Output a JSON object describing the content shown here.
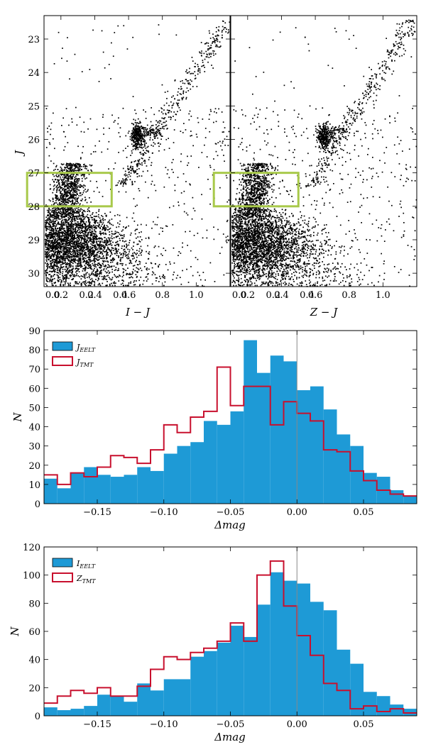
{
  "chart_data": [
    {
      "type": "scatter",
      "panel": "left",
      "xlabel": "I − J",
      "ylabel": "J",
      "xlim": [
        0.1,
        1.2
      ],
      "ylim": [
        30.4,
        22.3
      ],
      "xticks": [
        {
          "v": 0.2,
          "l": "0.2"
        },
        {
          "v": 0.4,
          "l": "0.4"
        },
        {
          "v": 0.6,
          "l": "0.6"
        },
        {
          "v": 0.8,
          "l": "0.8"
        },
        {
          "v": 1.0,
          "l": "1.0"
        }
      ],
      "xticks_lower": [
        {
          "v": 0.0,
          "l": "0.0"
        },
        {
          "v": 0.2,
          "l": "0.2"
        },
        {
          "v": 0.4,
          "l": "0.4"
        }
      ],
      "yticks": [
        {
          "v": 23,
          "l": "23"
        },
        {
          "v": 24,
          "l": "24"
        },
        {
          "v": 25,
          "l": "25"
        },
        {
          "v": 26,
          "l": "26"
        },
        {
          "v": 27,
          "l": "27"
        },
        {
          "v": 28,
          "l": "28"
        },
        {
          "v": 29,
          "l": "29"
        },
        {
          "v": 30,
          "l": "30"
        }
      ],
      "box": {
        "x0": 0.0,
        "x1": 0.5,
        "y0": 27.0,
        "y1": 28.0,
        "color": "#a8c94a"
      }
    },
    {
      "type": "scatter",
      "panel": "right",
      "xlabel": "Z − J",
      "xlim": [
        0.1,
        1.2
      ],
      "ylim": [
        30.4,
        22.3
      ],
      "xticks": [
        {
          "v": 0.2,
          "l": "0.2"
        },
        {
          "v": 0.4,
          "l": "0.4"
        },
        {
          "v": 0.6,
          "l": "0.6"
        },
        {
          "v": 0.8,
          "l": "0.8"
        },
        {
          "v": 1.0,
          "l": "1.0"
        }
      ],
      "xticks_lower": [
        {
          "v": 0.0,
          "l": "0.0"
        },
        {
          "v": 0.2,
          "l": "0.2"
        },
        {
          "v": 0.4,
          "l": "0.4"
        }
      ],
      "box": {
        "x0": 0.0,
        "x1": 0.5,
        "y0": 27.0,
        "y1": 28.0,
        "color": "#a8c94a"
      }
    },
    {
      "type": "bar",
      "panel": "hist-j",
      "xlabel": "Δmag",
      "ylabel": "N",
      "xlim": [
        -0.19,
        0.09
      ],
      "ylim": [
        0,
        90
      ],
      "bin_start": -0.19,
      "bin_width": 0.01,
      "filled": {
        "name": "J_EELT",
        "color": "#1e9ad6",
        "values": [
          13,
          8,
          16,
          19,
          15,
          14,
          15,
          19,
          17,
          26,
          30,
          32,
          43,
          41,
          48,
          85,
          68,
          77,
          74,
          59,
          61,
          49,
          36,
          30,
          16,
          14,
          7,
          4
        ]
      },
      "step": {
        "name": "J_TMT",
        "color": "#c8102e",
        "values": [
          15,
          10,
          16,
          14,
          19,
          25,
          24,
          21,
          28,
          41,
          37,
          45,
          48,
          71,
          51,
          61,
          61,
          41,
          53,
          47,
          43,
          28,
          27,
          17,
          12,
          7,
          5,
          4
        ]
      },
      "xticks": [
        {
          "v": -0.15,
          "l": "−0.15"
        },
        {
          "v": -0.1,
          "l": "−0.10"
        },
        {
          "v": -0.05,
          "l": "−0.05"
        },
        {
          "v": 0.0,
          "l": "0.00"
        },
        {
          "v": 0.05,
          "l": "0.05"
        }
      ],
      "yticks": [
        {
          "v": 0,
          "l": "0"
        },
        {
          "v": 10,
          "l": "10"
        },
        {
          "v": 20,
          "l": "20"
        },
        {
          "v": 30,
          "l": "30"
        },
        {
          "v": 40,
          "l": "40"
        },
        {
          "v": 50,
          "l": "50"
        },
        {
          "v": 60,
          "l": "60"
        },
        {
          "v": 70,
          "l": "70"
        },
        {
          "v": 80,
          "l": "80"
        },
        {
          "v": 90,
          "l": "90"
        }
      ],
      "vline": 0.0,
      "legend": [
        {
          "main": "J",
          "sub": "EELT"
        },
        {
          "main": "J",
          "sub": "TMT"
        }
      ]
    },
    {
      "type": "bar",
      "panel": "hist-iz",
      "xlabel": "Δmag",
      "ylabel": "N",
      "xlim": [
        -0.19,
        0.09
      ],
      "ylim": [
        0,
        120
      ],
      "bin_start": -0.19,
      "bin_width": 0.01,
      "filled": {
        "name": "I_EELT",
        "color": "#1e9ad6",
        "values": [
          6,
          4,
          5,
          7,
          15,
          14,
          10,
          23,
          18,
          26,
          26,
          42,
          46,
          52,
          64,
          56,
          79,
          102,
          96,
          94,
          81,
          75,
          47,
          37,
          17,
          14,
          8,
          5
        ]
      },
      "step": {
        "name": "Z_TMT",
        "color": "#c8102e",
        "values": [
          9,
          14,
          18,
          16,
          20,
          14,
          14,
          21,
          33,
          42,
          40,
          45,
          48,
          53,
          66,
          53,
          100,
          110,
          78,
          57,
          43,
          23,
          18,
          5,
          7,
          3,
          5,
          2
        ]
      },
      "xticks": [
        {
          "v": -0.15,
          "l": "−0.15"
        },
        {
          "v": -0.1,
          "l": "−0.10"
        },
        {
          "v": -0.05,
          "l": "−0.05"
        },
        {
          "v": 0.0,
          "l": "0.00"
        },
        {
          "v": 0.05,
          "l": "0.05"
        }
      ],
      "yticks": [
        {
          "v": 0,
          "l": "0"
        },
        {
          "v": 20,
          "l": "20"
        },
        {
          "v": 40,
          "l": "40"
        },
        {
          "v": 60,
          "l": "60"
        },
        {
          "v": 80,
          "l": "80"
        },
        {
          "v": 100,
          "l": "100"
        },
        {
          "v": 120,
          "l": "120"
        }
      ],
      "vline": 0.0,
      "legend": [
        {
          "main": "I",
          "sub": "EELT"
        },
        {
          "main": "Z",
          "sub": "TMT"
        }
      ]
    }
  ]
}
